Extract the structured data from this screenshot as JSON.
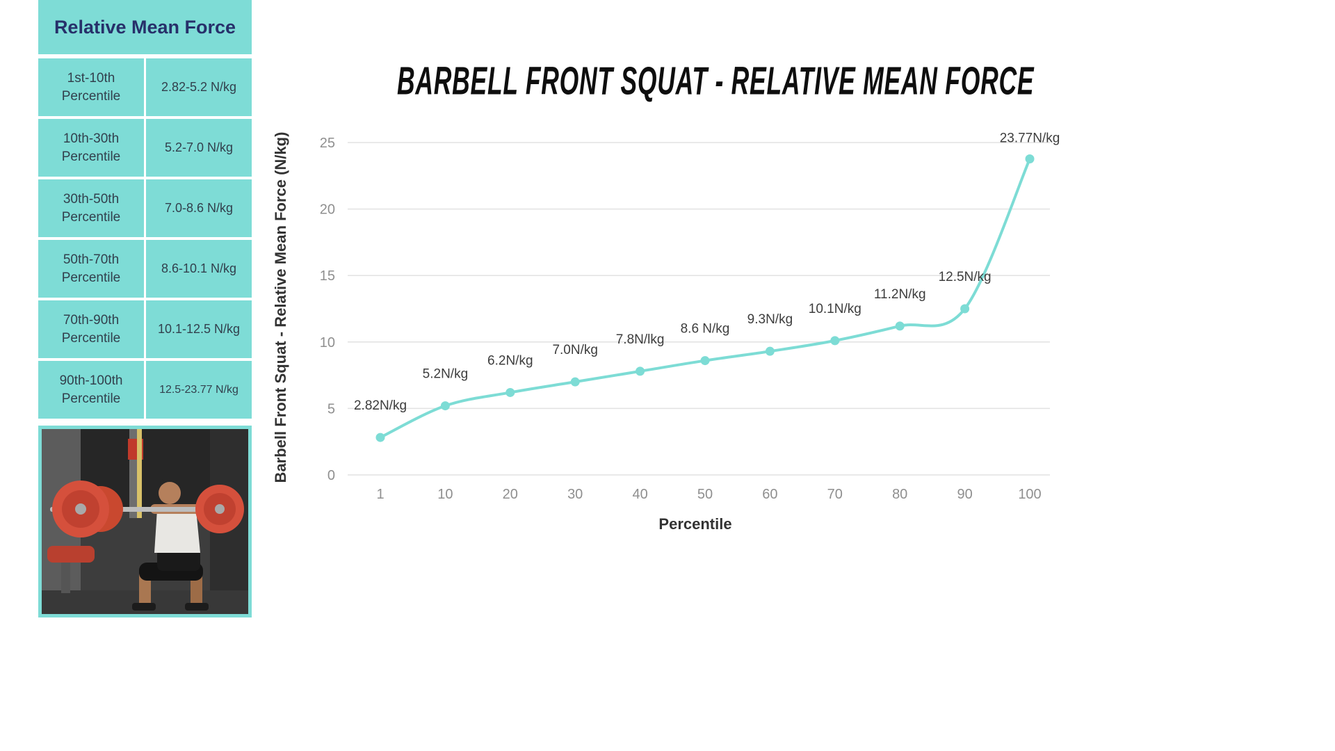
{
  "table": {
    "title": "Relative Mean Force",
    "rows": [
      {
        "range": "1st-10th Percentile",
        "value": "2.82-5.2 N/kg"
      },
      {
        "range": "10th-30th Percentile",
        "value": "5.2-7.0 N/kg"
      },
      {
        "range": "30th-50th Percentile",
        "value": "7.0-8.6 N/kg"
      },
      {
        "range": "50th-70th Percentile",
        "value": "8.6-10.1 N/kg"
      },
      {
        "range": "70th-90th Percentile",
        "value": "10.1-12.5 N/kg"
      },
      {
        "range": "90th-100th Percentile",
        "value": "12.5-23.77 N/kg"
      }
    ],
    "accent_color": "#7edcd6",
    "header_text_color": "#27306a"
  },
  "photo": {
    "name": "barbell-front-squat-photo"
  },
  "chart_data": {
    "type": "line",
    "title": "BARBELL FRONT SQUAT - RELATIVE MEAN FORCE",
    "xlabel": "Percentile",
    "ylabel": "Barbell Front Squat - Relative Mean Force (N/kg)",
    "categories": [
      "1",
      "10",
      "20",
      "30",
      "40",
      "50",
      "60",
      "70",
      "80",
      "90",
      "100"
    ],
    "values": [
      2.82,
      5.2,
      6.2,
      7.0,
      7.8,
      8.6,
      9.3,
      10.1,
      11.2,
      12.5,
      23.77
    ],
    "point_labels": [
      "2.82N/kg",
      "5.2N/kg",
      "6.2N/kg",
      "7.0N/kg",
      "7.8N/lkg",
      "8.6 N/kg",
      "9.3N/kg",
      "10.1N/kg",
      "11.2N/kg",
      "12.5N/kg",
      "23.77N/kg"
    ],
    "ylim": [
      0,
      25
    ],
    "yticks": [
      0,
      5,
      10,
      15,
      20,
      25
    ],
    "grid": true,
    "legend": "none",
    "line_color": "#7ddcd5",
    "grid_color": "#e2e2e2",
    "tick_color": "#8f8f8f"
  }
}
